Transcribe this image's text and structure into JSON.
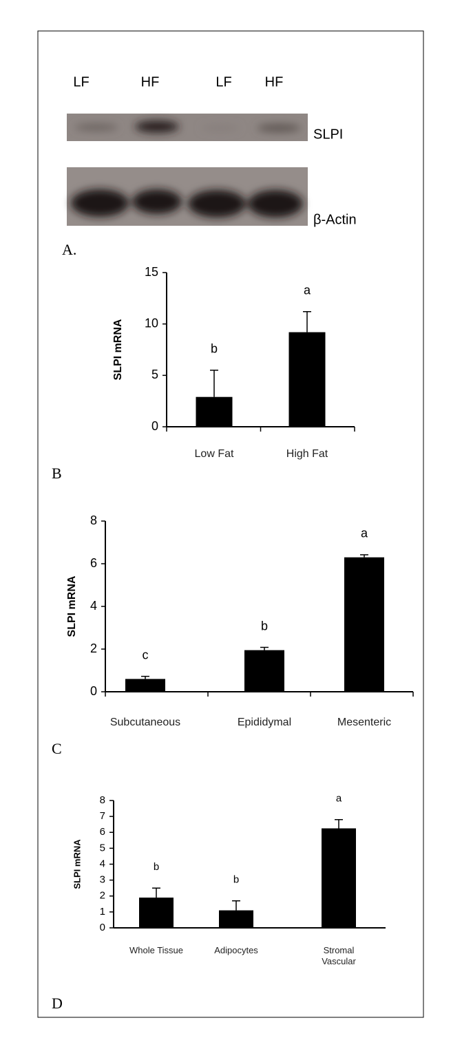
{
  "blot": {
    "lanes": [
      "LF",
      "HF",
      "LF",
      "HF"
    ],
    "bands": [
      "SLPI",
      "β-Actin"
    ],
    "panel": "A."
  },
  "chart_data": [
    {
      "type": "bar",
      "panel": "B",
      "ylabel": "SLPI mRNA",
      "categories": [
        "Low Fat",
        "High Fat"
      ],
      "values": [
        2.9,
        9.2
      ],
      "errors": [
        2.6,
        2.0
      ],
      "letters": [
        "b",
        "a"
      ],
      "color": "#000000",
      "ylim": [
        0,
        15
      ],
      "yticks": [
        0,
        5,
        10,
        15
      ]
    },
    {
      "type": "bar",
      "panel": "C",
      "ylabel": "SLPI mRNA",
      "categories": [
        "Subcutaneous",
        "Epididymal",
        "Mesenteric"
      ],
      "values": [
        0.6,
        1.95,
        6.3
      ],
      "errors": [
        0.12,
        0.13,
        0.12
      ],
      "letters": [
        "c",
        "b",
        "a"
      ],
      "color": "#000000",
      "ylim": [
        0,
        8
      ],
      "yticks": [
        0,
        2,
        4,
        6,
        8
      ]
    },
    {
      "type": "bar",
      "panel": "D",
      "ylabel": "SLPI mRNA",
      "categories": [
        "Whole Tissue",
        "Adipocytes",
        "Stromal Vascular"
      ],
      "values": [
        1.9,
        1.1,
        6.25
      ],
      "errors": [
        0.6,
        0.6,
        0.55
      ],
      "letters": [
        "b",
        "b",
        "a"
      ],
      "color": "#000000",
      "ylim": [
        0,
        8
      ],
      "yticks": [
        0,
        1,
        2,
        3,
        4,
        5,
        6,
        7,
        8
      ]
    }
  ]
}
